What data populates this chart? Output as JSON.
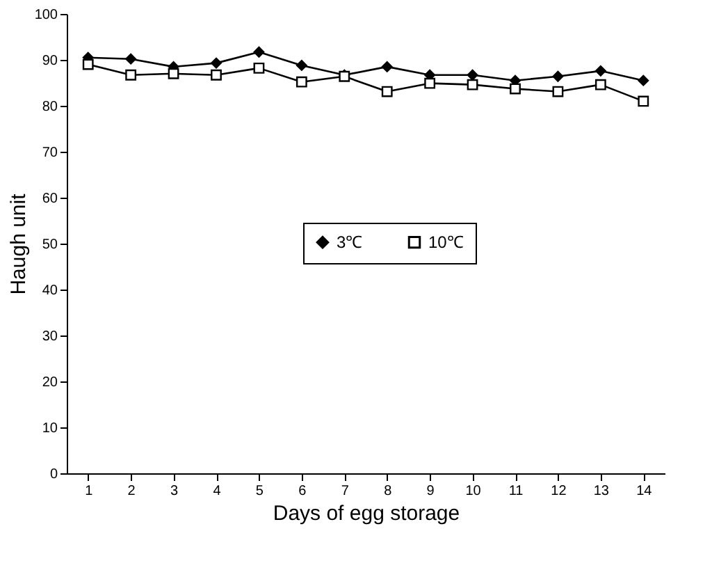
{
  "chart_data": {
    "type": "line",
    "xlabel": "Days of egg storage",
    "ylabel": "Haugh unit",
    "x": [
      1,
      2,
      3,
      4,
      5,
      6,
      7,
      8,
      9,
      10,
      11,
      12,
      13,
      14
    ],
    "xlim": [
      0.5,
      14.5
    ],
    "xticks": [
      1,
      2,
      3,
      4,
      5,
      6,
      7,
      8,
      9,
      10,
      11,
      12,
      13,
      14
    ],
    "ylim": [
      0,
      100
    ],
    "yticks": [
      0,
      10,
      20,
      30,
      40,
      50,
      60,
      70,
      80,
      90,
      100
    ],
    "grid": false,
    "legend": "center",
    "line_style": "solid",
    "series": [
      {
        "name": "3℃",
        "color": "#000000",
        "marker": "diamond",
        "values": [
          90.5,
          90.2,
          88.5,
          89.3,
          91.7,
          88.8,
          86.7,
          88.5,
          86.7,
          86.7,
          85.5,
          86.4,
          87.6,
          85.5
        ]
      },
      {
        "name": "10℃",
        "color": "#000000",
        "marker": "square",
        "values": [
          89.0,
          86.7,
          87.0,
          86.7,
          88.2,
          85.2,
          86.4,
          83.1,
          84.9,
          84.6,
          83.7,
          83.1,
          84.6,
          81.0
        ]
      }
    ]
  }
}
